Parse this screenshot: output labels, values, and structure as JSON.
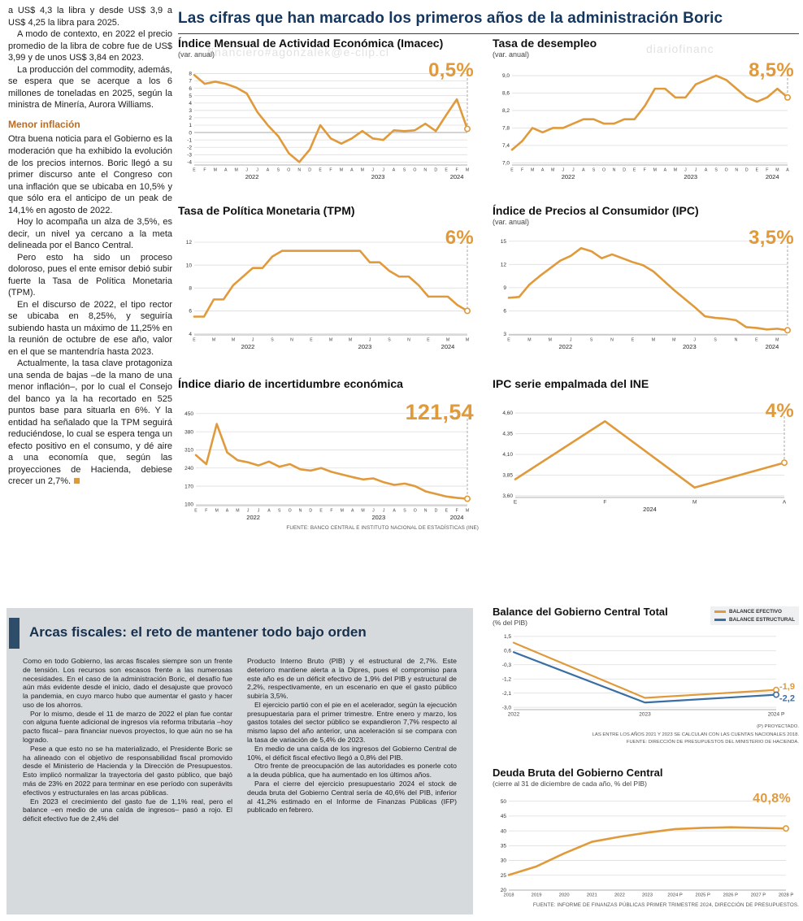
{
  "palette": {
    "orange": "#E09A3B",
    "blue": "#3A6EA5",
    "navy": "#15375E",
    "subhead_orange": "#BF6A1E",
    "box_bg": "#D7DADD"
  },
  "main_header": {
    "title": "Las cifras que han marcado los primeros años de la administración Boric"
  },
  "watermarks": [
    "financiero#agonzalek@e-clip.cl",
    "diariofinanc",
    "ero#agonzalez@e-clip.cl"
  ],
  "left_article": {
    "paragraphs_top": [
      "a US$ 4,3 la libra y desde US$ 3,9 a US$ 4,25 la libra para 2025.",
      "A modo de contexto, en 2022 el precio promedio de la libra de cobre fue de US$ 3,99 y de unos US$ 3,84 en 2023.",
      "La producción del commodity, además, se espera que se acerque a los 6 millones de toneladas en 2025, según la ministra de Minería, Aurora Williams."
    ],
    "subhead": "Menor inflación",
    "paragraphs_bottom": [
      "Otra buena noticia para el Gobierno es la moderación que ha exhibido la evolución de los precios internos. Boric llegó a su primer discurso ante el Congreso con una inflación que se ubicaba en 10,5% y que sólo era el anticipo de un peak de 14,1% en agosto de 2022.",
      "Hoy lo acompaña un alza de 3,5%, es decir, un nivel ya cercano a la meta delineada por el Banco Central.",
      "Pero esto ha sido un proceso doloroso, pues el ente emisor debió subir fuerte la Tasa de Política Monetaria (TPM).",
      "En el discurso de 2022, el tipo rector se ubicaba en 8,25%, y seguiría subiendo hasta un máximo de 11,25% en la reunión de octubre de ese año, valor en el que se mantendría hasta 2023.",
      "Actualmente, la tasa clave protagoniza una senda de bajas –de la mano de una menor inflación–, por lo cual el Consejo del banco ya la ha recortado en 525 puntos base para situarla en 6%. Y la entidad ha señalado que la TPM seguirá reduciéndose, lo cual se espera tenga un efecto positivo en el consumo, y dé aire a una economía que, según las proyecciones de Hacienda, debiese crecer un 2,7%."
    ]
  },
  "chart_data": [
    {
      "type": "line",
      "title": "Índice Mensual de Actividad Económica (Imacec)",
      "subtitle": "(var. anual)",
      "callout": "0,5%",
      "ylim": [
        -4.4,
        8.6
      ],
      "zero_line": true,
      "ytick_vals": [
        8,
        7,
        6,
        5,
        4,
        3,
        2,
        1,
        0,
        -1,
        -2,
        -3,
        -4
      ],
      "ytick_labels": [
        "8",
        "7",
        "6",
        "5",
        "4",
        "3",
        "2",
        "1",
        "0",
        "-1",
        "-2",
        "-3",
        "-4"
      ],
      "x_labels": [
        "E",
        "F",
        "M",
        "A",
        "M",
        "J",
        "J",
        "A",
        "S",
        "O",
        "N",
        "D",
        "E",
        "F",
        "M",
        "A",
        "M",
        "J",
        "J",
        "A",
        "S",
        "O",
        "N",
        "D",
        "E",
        "F",
        "M"
      ],
      "tick_every": 1,
      "year_groups": [
        {
          "label": "2022",
          "count": 12
        },
        {
          "label": "2023",
          "count": 12
        },
        {
          "label": "2024",
          "count": 3
        }
      ],
      "margins": {
        "l": 20,
        "r": 14,
        "t": 12,
        "b": 22
      },
      "series": [
        {
          "name": "Imacec",
          "color": "#E09A3B",
          "values": [
            7.8,
            6.6,
            6.9,
            6.6,
            6.1,
            5.3,
            2.8,
            1.0,
            -0.5,
            -2.8,
            -4.0,
            -2.3,
            1.0,
            -0.8,
            -1.5,
            -0.8,
            0.2,
            -0.8,
            -1.0,
            0.3,
            0.2,
            0.3,
            1.2,
            0.2,
            2.4,
            4.5,
            0.5
          ]
        }
      ],
      "end_marker": true,
      "dash_to_callout": true
    },
    {
      "type": "line",
      "title": "Tasa de desempleo",
      "subtitle": "(var. anual)",
      "callout": "8,5%",
      "ylim": [
        6.95,
        9.15
      ],
      "ytick_vals": [
        9.0,
        8.6,
        8.2,
        7.8,
        7.4,
        7.0
      ],
      "ytick_labels": [
        "9,0",
        "8,6",
        "8,2",
        "7,8",
        "7,4",
        "7,0"
      ],
      "x_labels": [
        "E",
        "F",
        "M",
        "A",
        "M",
        "J",
        "J",
        "A",
        "S",
        "O",
        "N",
        "D",
        "E",
        "F",
        "M",
        "A",
        "M",
        "J",
        "J",
        "A",
        "S",
        "O",
        "N",
        "D",
        "E",
        "F",
        "M",
        "A"
      ],
      "tick_every": 1,
      "year_groups": [
        {
          "label": "2022",
          "count": 12
        },
        {
          "label": "2023",
          "count": 12
        },
        {
          "label": "2024",
          "count": 4
        }
      ],
      "margins": {
        "l": 24,
        "r": 14,
        "t": 12,
        "b": 22
      },
      "series": [
        {
          "name": "Tasa de desempleo",
          "color": "#E09A3B",
          "values": [
            7.3,
            7.5,
            7.8,
            7.7,
            7.8,
            7.8,
            7.9,
            8.0,
            8.0,
            7.9,
            7.9,
            8.0,
            8.0,
            8.3,
            8.7,
            8.7,
            8.5,
            8.5,
            8.8,
            8.9,
            9.0,
            8.9,
            8.7,
            8.5,
            8.4,
            8.5,
            8.7,
            8.5
          ]
        }
      ],
      "end_marker": true,
      "dash_to_callout": true
    },
    {
      "type": "line",
      "title": "Tasa de Política Monetaria (TPM)",
      "subtitle": "",
      "callout": "6%",
      "ylim": [
        3.9,
        12.5
      ],
      "ytick_vals": [
        12,
        10,
        8,
        6,
        4
      ],
      "ytick_labels": [
        "12",
        "10",
        "8",
        "6",
        "4"
      ],
      "x_labels": [
        "E",
        "F",
        "M",
        "A",
        "M",
        "J",
        "J",
        "A",
        "S",
        "O",
        "N",
        "D",
        "E",
        "F",
        "M",
        "A",
        "M",
        "J",
        "J",
        "A",
        "S",
        "O",
        "N",
        "D",
        "E",
        "F",
        "M",
        "A",
        "M"
      ],
      "tick_every": 2,
      "year_groups": [
        {
          "label": "2022",
          "count": 12
        },
        {
          "label": "2023",
          "count": 12
        },
        {
          "label": "2024",
          "count": 5
        }
      ],
      "margins": {
        "l": 20,
        "r": 14,
        "t": 12,
        "b": 22
      },
      "series": [
        {
          "name": "TPM",
          "color": "#E09A3B",
          "values": [
            5.5,
            5.5,
            7.0,
            7.0,
            8.25,
            9.0,
            9.75,
            9.75,
            10.75,
            11.25,
            11.25,
            11.25,
            11.25,
            11.25,
            11.25,
            11.25,
            11.25,
            11.25,
            10.25,
            10.25,
            9.5,
            9.0,
            9.0,
            8.25,
            7.25,
            7.25,
            7.25,
            6.5,
            6.0
          ]
        }
      ],
      "end_marker": true,
      "dash_to_callout": true
    },
    {
      "type": "line",
      "title": "Índice de Precios al Consumidor (IPC)",
      "subtitle": "(var. anual)",
      "callout": "3,5%",
      "ylim": [
        2.9,
        15.6
      ],
      "ytick_vals": [
        15,
        12,
        9,
        6,
        3
      ],
      "ytick_labels": [
        "15",
        "12",
        "9",
        "6",
        "3"
      ],
      "x_labels": [
        "E",
        "F",
        "M",
        "A",
        "M",
        "J",
        "J",
        "A",
        "S",
        "O",
        "N",
        "D",
        "E",
        "F",
        "M",
        "A",
        "M",
        "J",
        "J",
        "A",
        "S",
        "O",
        "N",
        "D",
        "E",
        "F",
        "M",
        "A"
      ],
      "tick_every": 2,
      "year_groups": [
        {
          "label": "2022",
          "count": 12
        },
        {
          "label": "2023",
          "count": 12
        },
        {
          "label": "2024",
          "count": 4
        }
      ],
      "margins": {
        "l": 20,
        "r": 14,
        "t": 12,
        "b": 22
      },
      "series": [
        {
          "name": "IPC",
          "color": "#E09A3B",
          "values": [
            7.7,
            7.8,
            9.4,
            10.5,
            11.5,
            12.5,
            13.1,
            14.1,
            13.7,
            12.8,
            13.3,
            12.8,
            12.3,
            11.9,
            11.1,
            9.9,
            8.7,
            7.6,
            6.5,
            5.3,
            5.1,
            5.0,
            4.8,
            3.9,
            3.8,
            3.6,
            3.7,
            3.5
          ]
        }
      ],
      "end_marker": true,
      "dash_to_callout": true
    },
    {
      "type": "line",
      "title": "Índice diario de incertidumbre económica",
      "subtitle": "",
      "callout": "121,54",
      "source": "FUENTE: BANCO CENTRAL E INSTITUTO NACIONAL DE ESTADÍSTICAS (INE)",
      "ylim": [
        95,
        465
      ],
      "ytick_vals": [
        450,
        380,
        310,
        240,
        170,
        100
      ],
      "ytick_labels": [
        "450",
        "380",
        "310",
        "240",
        "170",
        "100"
      ],
      "x_labels": [
        "E",
        "F",
        "M",
        "A",
        "M",
        "J",
        "J",
        "A",
        "S",
        "O",
        "N",
        "D",
        "E",
        "F",
        "M",
        "A",
        "M",
        "J",
        "J",
        "A",
        "S",
        "O",
        "N",
        "D",
        "E",
        "F",
        "M"
      ],
      "tick_every": 1,
      "year_groups": [
        {
          "label": "2022",
          "count": 12
        },
        {
          "label": "2023",
          "count": 12
        },
        {
          "label": "2024",
          "count": 3
        }
      ],
      "margins": {
        "l": 22,
        "r": 14,
        "t": 12,
        "b": 22
      },
      "series": [
        {
          "name": "Incertidumbre económica",
          "color": "#E09A3B",
          "values": [
            290,
            255,
            410,
            300,
            270,
            262,
            250,
            265,
            245,
            255,
            235,
            230,
            240,
            225,
            215,
            205,
            196,
            200,
            185,
            175,
            180,
            170,
            150,
            140,
            130,
            125,
            121.54
          ]
        }
      ],
      "end_marker": true,
      "dash_to_callout": true
    },
    {
      "type": "line",
      "title": "IPC serie empalmada del INE",
      "subtitle": "",
      "callout": "4%",
      "ylim": [
        3.58,
        4.62
      ],
      "ytick_vals": [
        4.6,
        4.35,
        4.1,
        3.85,
        3.6
      ],
      "ytick_labels": [
        "4,60",
        "4,35",
        "4,10",
        "3,85",
        "3,60"
      ],
      "x_labels": [
        "E",
        "F",
        "M",
        "A"
      ],
      "tick_every": 1,
      "x_font": 6.5,
      "year_groups": [
        {
          "label": "2024",
          "count": 4
        }
      ],
      "margins": {
        "l": 28,
        "r": 18,
        "t": 14,
        "b": 22
      },
      "series": [
        {
          "name": "IPC empalmado",
          "color": "#E09A3B",
          "values": [
            3.8,
            4.5,
            3.7,
            4.0
          ]
        }
      ],
      "end_marker": true,
      "dash_to_callout": true
    },
    {
      "type": "line",
      "title": "Balance del Gobierno Central Total",
      "subtitle": "(% del PIB)",
      "legend": [
        {
          "label": "BALANCE EFECTIVO",
          "color": "#E09A3B"
        },
        {
          "label": "BALANCE ESTRUCTURAL",
          "color": "#3A6EA5"
        }
      ],
      "notes": [
        "(P) PROYECTADO.",
        "LAS ENTRE LOS AÑOS 2021 Y 2023 SE CALCULAN CON LAS CUENTAS NACIONALES 2018.",
        "FUENTE: DIRECCIÓN DE PRESUPUESTOS DEL MINISTERIO DE HACIENDA."
      ],
      "ylim": [
        -3.15,
        1.65
      ],
      "ytick_vals": [
        1.5,
        0.6,
        -0.3,
        -1.2,
        -2.1,
        -3.0
      ],
      "ytick_labels": [
        "1,5",
        "0,6",
        "-0,3",
        "-1,2",
        "-2,1",
        "-3,0"
      ],
      "x_labels": [
        "2022",
        "2023",
        "2024 P"
      ],
      "tick_every": 1,
      "x_font": 6.5,
      "margins": {
        "l": 26,
        "r": 28,
        "t": 8,
        "b": 13
      },
      "series": [
        {
          "name": "Balance efectivo",
          "color": "#E09A3B",
          "values": [
            1.1,
            -2.4,
            -1.9
          ]
        },
        {
          "name": "Balance estructural",
          "color": "#3A6EA5",
          "values": [
            0.5,
            -2.7,
            -2.2
          ]
        }
      ],
      "end_marker": true,
      "end_labels": [
        {
          "text": "-1,9",
          "color": "#E09A3B"
        },
        {
          "text": "-2,2",
          "color": "#3A6EA5"
        }
      ]
    },
    {
      "type": "line",
      "title": "Deuda Bruta del Gobierno Central",
      "subtitle": "(cierre al 31 de diciembre de cada año, % del PIB)",
      "callout": "40,8%",
      "source": "FUENTE: INFORME DE FINANZAS PÚBLICAS PRIMER TRIMESTRE 2024, DIRECCIÓN DE PRESUPUESTOS.",
      "ylim": [
        20,
        51
      ],
      "ytick_vals": [
        50,
        45,
        40,
        35,
        30,
        25,
        20
      ],
      "ytick_labels": [
        "50",
        "45",
        "40",
        "35",
        "30",
        "25",
        "20"
      ],
      "x_labels": [
        "2018",
        "2019",
        "2020",
        "2021",
        "2022",
        "2023",
        "2024 P",
        "2025 P",
        "2026 P",
        "2027 P",
        "2028 P"
      ],
      "tick_every": 1,
      "x_font": 5.8,
      "margins": {
        "l": 20,
        "r": 16,
        "t": 12,
        "b": 13
      },
      "series": [
        {
          "name": "Deuda bruta",
          "color": "#E09A3B",
          "values": [
            25.1,
            28.0,
            32.4,
            36.3,
            38.0,
            39.4,
            40.6,
            41.0,
            41.2,
            41.0,
            40.8
          ]
        }
      ],
      "end_marker": true
    }
  ],
  "fiscal_box": {
    "headline": "Arcas fiscales: el reto de mantener todo bajo orden",
    "col1": [
      "Como en todo Gobierno, las arcas fiscales siempre son un frente de tensión. Los recursos son escasos frente a las numerosas necesidades. En el caso de la administración Boric, el desafío fue aún más evidente desde el inicio, dado el desajuste que provocó la pandemia, en cuyo marco hubo que aumentar el gasto y hacer uso de los ahorros.",
      "Por lo mismo, desde el 11 de marzo de 2022 el plan fue contar con alguna fuente adicional de ingresos vía reforma tributaria –hoy pacto fiscal– para financiar nuevos proyectos, lo que aún no se ha logrado.",
      "Pese a que esto no se ha materializado, el Presidente Boric se ha alineado con el objetivo de responsabilidad fiscal promovido desde el Ministerio de Hacienda y la Dirección de Presupuestos. Esto implicó normalizar la trayectoria del gasto público, que bajó más de 23% en 2022 para terminar en ese período con superávits efectivos y estructurales en las arcas públicas.",
      "En 2023 el crecimiento del gasto fue de 1,1% real, pero el balance –en medio de una caída de ingresos– pasó a rojo. El déficit efectivo fue de 2,4% del"
    ],
    "col2": [
      "Producto Interno Bruto (PIB) y el estructural de 2,7%. Este deterioro mantiene alerta a la Dipres, pues el compromiso para este año es de un déficit efectivo de 1,9% del PIB y estructural de 2,2%, respectivamente, en un escenario en que el gasto público subiría 3,5%.",
      "El ejercicio partió con el pie en el acelerador, según la ejecución presupuestaria para el primer trimestre. Entre enero y marzo, los gastos totales del sector público se expandieron 7,7% respecto al mismo lapso del año anterior, una aceleración si se compara con la tasa de variación de 5,4% de 2023.",
      "En medio de una caída de los ingresos del Gobierno Central de 10%, el déficit fiscal efectivo llegó a 0,8% del PIB.",
      "Otro frente de preocupación de las autoridades es ponerle coto a la deuda pública, que ha aumentado en los últimos años.",
      "Para el cierre del ejercicio presupuestario 2024 el stock de deuda bruta del Gobierno Central sería de 40,6% del PIB, inferior al 41,2% estimado en el Informe de Finanzas Públicas (IFP) publicado en febrero."
    ]
  }
}
